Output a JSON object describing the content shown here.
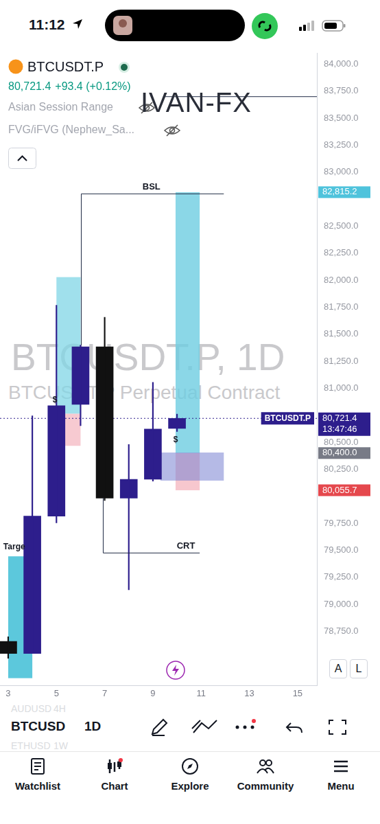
{
  "status_bar": {
    "time": "11:12"
  },
  "header": {
    "symbol": "BTCUSDT.P",
    "price": "80,721.4",
    "change": "+93.4 (+0.12%)",
    "indicators": [
      "Asian Session Range",
      "FVG/iFVG (Nephew_Sa..."
    ]
  },
  "chart_data": {
    "type": "candlestick",
    "title": "IVAN-FX",
    "watermark": "BTCUSDT.P, 1D",
    "watermark_subtitle": "BTCUSDT.P Perpetual Contract",
    "x": [
      3,
      4,
      5,
      6,
      7,
      8,
      9,
      10
    ],
    "open": [
      78656,
      78545,
      79816,
      80851,
      81384,
      79983,
      80157,
      80628
    ],
    "high": [
      78700,
      80745,
      81768,
      81400,
      81657,
      80479,
      81055,
      80760
    ],
    "low": [
      78500,
      78545,
      79754,
      80653,
      79960,
      79134,
      80140,
      80600
    ],
    "close": [
      78545,
      79816,
      80839,
      81384,
      79983,
      80157,
      80622,
      80721.4
    ],
    "colors": [
      "#111111",
      "#2d1e8c",
      "#2d1e8c",
      "#2d1e8c",
      "#111111",
      "#2d1e8c",
      "#2d1e8c",
      "#2d1e8c"
    ],
    "xlim": [
      2.66,
      15.8
    ],
    "xticks": [
      3,
      5,
      7,
      9,
      11,
      13,
      15
    ],
    "ylim": [
      78250,
      84100
    ],
    "yticks": [
      {
        "value": 84000,
        "label": "84,000.0"
      },
      {
        "value": 83750,
        "label": "83,750.0"
      },
      {
        "value": 83500,
        "label": "83,500.0"
      },
      {
        "value": 83250,
        "label": "83,250.0"
      },
      {
        "value": 83000,
        "label": "83,000.0"
      },
      {
        "value": 82500,
        "label": "82,500.0"
      },
      {
        "value": 82250,
        "label": "82,250.0"
      },
      {
        "value": 82000,
        "label": "82,000.0"
      },
      {
        "value": 81750,
        "label": "81,750.0"
      },
      {
        "value": 81500,
        "label": "81,500.0"
      },
      {
        "value": 81250,
        "label": "81,250.0"
      },
      {
        "value": 81000,
        "label": "81,000.0"
      },
      {
        "value": 80500,
        "label": "80,500.0"
      },
      {
        "value": 80250,
        "label": "80,250.0"
      },
      {
        "value": 79750,
        "label": "79,750.0"
      },
      {
        "value": 79500,
        "label": "79,500.0"
      },
      {
        "value": 79250,
        "label": "79,250.0"
      },
      {
        "value": 79000,
        "label": "79,000.0"
      },
      {
        "value": 78750,
        "label": "78,750.0"
      }
    ],
    "grid": false,
    "current_price": {
      "value": 80721.4,
      "label": "BTCUSDT.P",
      "color": "#2d1e8c"
    },
    "price_tags": [
      {
        "value": 82815.2,
        "label": "82,815.2",
        "color": "#4fc3dc"
      },
      {
        "value": 80721.4,
        "label": "80,721.4",
        "sublabel": "13:47:46",
        "color": "#2d1e8c"
      },
      {
        "value": 80400,
        "label": "80,400.0",
        "color": "#787b86"
      },
      {
        "value": 80055.7,
        "label": "80,055.7",
        "color": "#e5484d"
      }
    ],
    "annotations": {
      "boxes": [
        {
          "x0": 3.0,
          "x1": 4.0,
          "y0": 78316,
          "y1": 79444,
          "color": "rgba(64,190,214,0.85)"
        },
        {
          "x0": 5.0,
          "x1": 6.0,
          "y0": 80764,
          "y1": 82029,
          "color": "rgba(128,214,230,0.75)"
        },
        {
          "x0": 5.0,
          "x1": 6.0,
          "y0": 80467,
          "y1": 80764,
          "color": "rgba(244,180,190,0.7)"
        },
        {
          "x0": 9.94,
          "x1": 10.94,
          "y0": 80400,
          "y1": 82815.2,
          "color": "rgba(110,205,225,0.8)"
        },
        {
          "x0": 9.94,
          "x1": 10.94,
          "y0": 80055.7,
          "y1": 80400,
          "color": "rgba(244,180,190,0.75)"
        },
        {
          "x0": 9.31,
          "x1": 11.94,
          "y0": 80145,
          "y1": 80405,
          "color": "rgba(120,130,210,0.55)"
        }
      ],
      "lines": [
        {
          "points": [
            [
              6.03,
              81397
            ],
            [
              6.03,
              82800
            ],
            [
              11.94,
              82800
            ]
          ],
          "label": "BSL",
          "label_at": [
            8.94,
            82800
          ]
        },
        {
          "points": [
            [
              6.94,
              79983
            ],
            [
              6.94,
              79475
            ],
            [
              10.94,
              79475
            ]
          ],
          "label": "CRT",
          "label_at": [
            10.37,
            79475
          ]
        },
        {
          "points": [
            [
              9.51,
              83700
            ],
            [
              15.8,
              83700
            ]
          ]
        }
      ],
      "texts": [
        {
          "text": "$",
          "at": [
            4.94,
            80888
          ]
        },
        {
          "text": "$",
          "at": [
            9.94,
            80522
          ]
        },
        {
          "text": "Targe",
          "at": [
            3.25,
            79530
          ]
        }
      ]
    }
  },
  "chart_buttons": [
    "A",
    "L"
  ],
  "toolbar": {
    "symbols": [
      {
        "symbol": "AUDUSD",
        "interval": "4H"
      },
      {
        "symbol": "BTCUSD",
        "interval": "1D"
      },
      {
        "symbol": "ETHUSD",
        "interval": "1W"
      }
    ]
  },
  "nav": [
    "Watchlist",
    "Chart",
    "Explore",
    "Community",
    "Menu"
  ]
}
